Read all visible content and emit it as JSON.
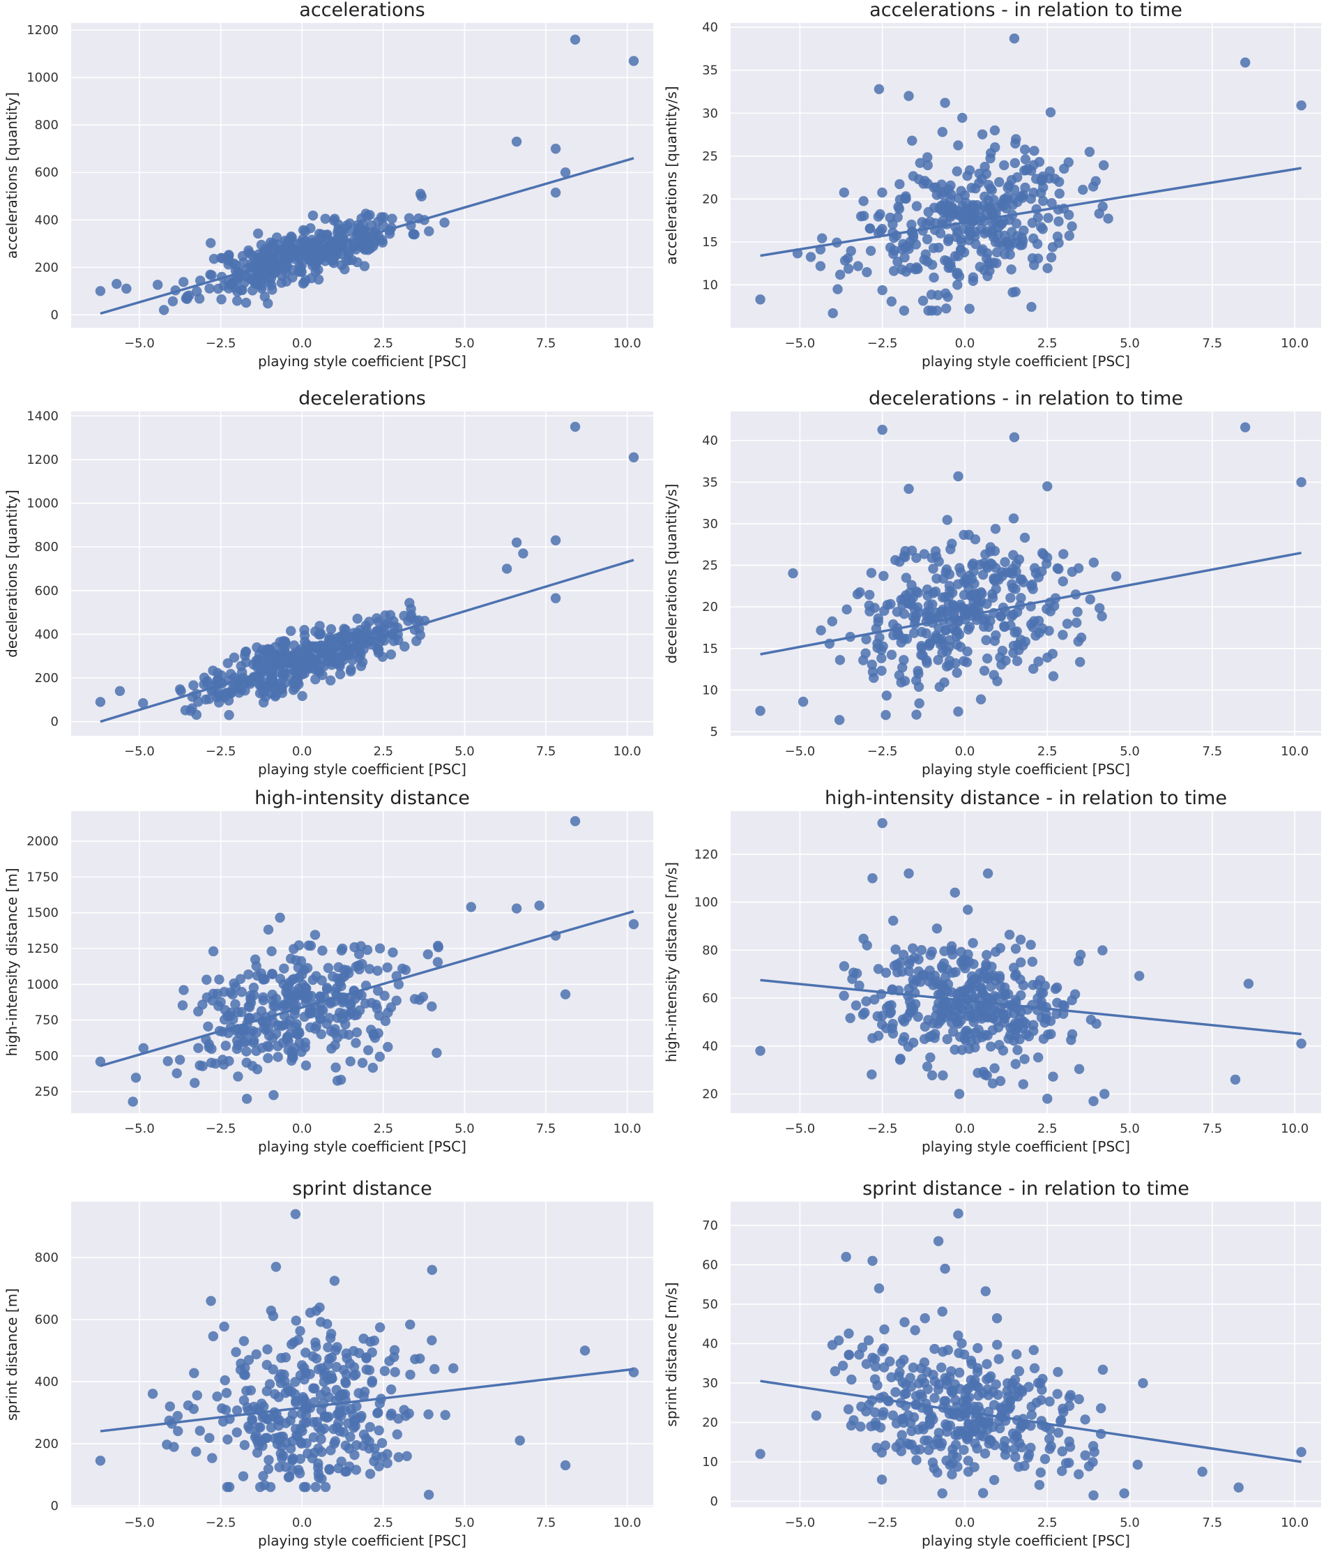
{
  "colors": {
    "background": "#eaeaf2",
    "grid": "#ffffff",
    "marker": "#4c72b0",
    "text": "#222222"
  },
  "chart_data": [
    {
      "type": "scatter",
      "title": "accelerations",
      "xlabel": "playing style coefficient [PSC]",
      "ylabel": "accelerations [quantity]",
      "xlim": [
        -7.1,
        10.8
      ],
      "ylim": [
        -55,
        1230
      ],
      "xticks": [
        -5,
        -2.5,
        0,
        2.5,
        5,
        7.5,
        10
      ],
      "xtick_labels": [
        "−5.0",
        "−2.5",
        "0.0",
        "2.5",
        "5.0",
        "7.5",
        "10.0"
      ],
      "yticks": [
        0,
        200,
        400,
        600,
        800,
        1000,
        1200
      ],
      "ytick_labels": [
        "0",
        "200",
        "400",
        "600",
        "800",
        "1000",
        "1200"
      ],
      "regression": {
        "x": [
          -6.2,
          10.2
        ],
        "y": [
          5,
          660
        ]
      },
      "outliers": [
        [
          8.4,
          1160
        ],
        [
          10.2,
          1070
        ],
        [
          6.6,
          730
        ],
        [
          7.8,
          700
        ],
        [
          8.1,
          600
        ],
        [
          7.8,
          515
        ],
        [
          -6.2,
          100
        ],
        [
          -5.4,
          110
        ],
        [
          -5.7,
          130
        ]
      ],
      "generator": {
        "n": 380,
        "xmin": -5.4,
        "xmax": 5.4,
        "xsd": 2.1,
        "slope": 40,
        "intercept": 255,
        "spread": 55,
        "ymin": 20,
        "seed": 11
      }
    },
    {
      "type": "scatter",
      "title": "accelerations - in relation to time",
      "xlabel": "playing style coefficient [PSC]",
      "ylabel": "accelerations [quantity/s]",
      "xlim": [
        -7.1,
        10.8
      ],
      "ylim": [
        5,
        40.5
      ],
      "xticks": [
        -5,
        -2.5,
        0,
        2.5,
        5,
        7.5,
        10
      ],
      "xtick_labels": [
        "−5.0",
        "−2.5",
        "0.0",
        "2.5",
        "5.0",
        "7.5",
        "10.0"
      ],
      "yticks": [
        10,
        15,
        20,
        25,
        30,
        35,
        40
      ],
      "ytick_labels": [
        "10",
        "15",
        "20",
        "25",
        "30",
        "35",
        "40"
      ],
      "regression": {
        "x": [
          -6.2,
          10.2
        ],
        "y": [
          13.4,
          23.6
        ]
      },
      "outliers": [
        [
          1.5,
          38.7
        ],
        [
          8.5,
          35.9
        ],
        [
          -2.6,
          32.8
        ],
        [
          -1.7,
          32.0
        ],
        [
          -0.6,
          31.2
        ],
        [
          10.2,
          30.9
        ],
        [
          2.6,
          30.1
        ],
        [
          -1.6,
          26.8
        ],
        [
          -6.2,
          8.3
        ],
        [
          -4.0,
          6.7
        ]
      ],
      "generator": {
        "n": 360,
        "xmin": -5.6,
        "xmax": 5.4,
        "xsd": 2.3,
        "slope": 0.62,
        "intercept": 17.2,
        "spread": 4.0,
        "ymin": 7,
        "seed": 23
      }
    },
    {
      "type": "scatter",
      "title": "decelerations",
      "xlabel": "playing style coefficient [PSC]",
      "ylabel": "decelerations [quantity]",
      "xlim": [
        -7.1,
        10.8
      ],
      "ylim": [
        -65,
        1420
      ],
      "xticks": [
        -5,
        -2.5,
        0,
        2.5,
        5,
        7.5,
        10
      ],
      "xtick_labels": [
        "−5.0",
        "−2.5",
        "0.0",
        "2.5",
        "5.0",
        "7.5",
        "10.0"
      ],
      "yticks": [
        0,
        200,
        400,
        600,
        800,
        1000,
        1200,
        1400
      ],
      "ytick_labels": [
        "0",
        "200",
        "400",
        "600",
        "800",
        "1000",
        "1200",
        "1400"
      ],
      "regression": {
        "x": [
          -6.2,
          10.2
        ],
        "y": [
          0,
          740
        ]
      },
      "outliers": [
        [
          8.4,
          1350
        ],
        [
          10.2,
          1210
        ],
        [
          6.6,
          820
        ],
        [
          7.8,
          830
        ],
        [
          6.8,
          770
        ],
        [
          6.3,
          700
        ],
        [
          7.8,
          565
        ],
        [
          -6.2,
          90
        ],
        [
          -5.6,
          140
        ]
      ],
      "generator": {
        "n": 380,
        "xmin": -5.4,
        "xmax": 5.4,
        "xsd": 2.1,
        "slope": 46,
        "intercept": 285,
        "spread": 60,
        "ymin": 30,
        "seed": 37
      }
    },
    {
      "type": "scatter",
      "title": "decelerations - in relation to time",
      "xlabel": "playing style coefficient [PSC]",
      "ylabel": "decelerations [quantity/s]",
      "xlim": [
        -7.1,
        10.8
      ],
      "ylim": [
        4.5,
        43.5
      ],
      "xticks": [
        -5,
        -2.5,
        0,
        2.5,
        5,
        7.5,
        10
      ],
      "xtick_labels": [
        "−5.0",
        "−2.5",
        "0.0",
        "2.5",
        "5.0",
        "7.5",
        "10.0"
      ],
      "yticks": [
        5,
        10,
        15,
        20,
        25,
        30,
        35,
        40
      ],
      "ytick_labels": [
        "5",
        "10",
        "15",
        "20",
        "25",
        "30",
        "35",
        "40"
      ],
      "regression": {
        "x": [
          -6.2,
          10.2
        ],
        "y": [
          14.3,
          26.5
        ]
      },
      "outliers": [
        [
          -2.5,
          41.3
        ],
        [
          8.5,
          41.6
        ],
        [
          1.5,
          40.4
        ],
        [
          10.2,
          35.0
        ],
        [
          -1.7,
          34.2
        ],
        [
          2.5,
          34.5
        ],
        [
          -0.2,
          35.7
        ],
        [
          -6.2,
          7.5
        ],
        [
          -3.8,
          6.4
        ],
        [
          -4.9,
          8.6
        ]
      ],
      "generator": {
        "n": 360,
        "xmin": -5.6,
        "xmax": 5.4,
        "xsd": 2.3,
        "slope": 0.72,
        "intercept": 19.0,
        "spread": 4.5,
        "ymin": 7,
        "seed": 51
      }
    },
    {
      "type": "scatter",
      "title": "high-intensity distance",
      "xlabel": "playing style coefficient [PSC]",
      "ylabel": "high-intensity distance [m]",
      "xlim": [
        -7.1,
        10.8
      ],
      "ylim": [
        100,
        2210
      ],
      "xticks": [
        -5,
        -2.5,
        0,
        2.5,
        5,
        7.5,
        10
      ],
      "xtick_labels": [
        "−5.0",
        "−2.5",
        "0.0",
        "2.5",
        "5.0",
        "7.5",
        "10.0"
      ],
      "yticks": [
        250,
        500,
        750,
        1000,
        1250,
        1500,
        1750,
        2000
      ],
      "ytick_labels": [
        "250",
        "500",
        "750",
        "1000",
        "1250",
        "1500",
        "1750",
        "2000"
      ],
      "regression": {
        "x": [
          -6.2,
          10.2
        ],
        "y": [
          430,
          1510
        ]
      },
      "outliers": [
        [
          8.4,
          2140
        ],
        [
          10.2,
          1420
        ],
        [
          7.3,
          1550
        ],
        [
          6.6,
          1530
        ],
        [
          5.2,
          1540
        ],
        [
          7.8,
          1340
        ],
        [
          8.1,
          930
        ],
        [
          -6.2,
          460
        ],
        [
          -5.2,
          180
        ]
      ],
      "generator": {
        "n": 340,
        "xmin": -5.6,
        "xmax": 5.4,
        "xsd": 2.3,
        "slope": 56,
        "intercept": 830,
        "spread": 220,
        "ymin": 200,
        "seed": 73
      }
    },
    {
      "type": "scatter",
      "title": "high-intensity distance - in relation to time",
      "xlabel": "playing style coefficient [PSC]",
      "ylabel": "high-intensity distance [m/s]",
      "xlim": [
        -7.1,
        10.8
      ],
      "ylim": [
        12,
        138
      ],
      "xticks": [
        -5,
        -2.5,
        0,
        2.5,
        5,
        7.5,
        10
      ],
      "xtick_labels": [
        "−5.0",
        "−2.5",
        "0.0",
        "2.5",
        "5.0",
        "7.5",
        "10.0"
      ],
      "yticks": [
        20,
        40,
        60,
        80,
        100,
        120
      ],
      "ytick_labels": [
        "20",
        "40",
        "60",
        "80",
        "100",
        "120"
      ],
      "regression": {
        "x": [
          -6.2,
          10.2
        ],
        "y": [
          67.5,
          45.0
        ]
      },
      "outliers": [
        [
          -2.5,
          133
        ],
        [
          -1.7,
          112
        ],
        [
          0.7,
          112
        ],
        [
          -2.8,
          110
        ],
        [
          -0.3,
          104
        ],
        [
          -6.2,
          38
        ],
        [
          3.9,
          17
        ],
        [
          2.5,
          18
        ],
        [
          10.2,
          41
        ],
        [
          8.6,
          66
        ],
        [
          8.2,
          26
        ]
      ],
      "generator": {
        "n": 360,
        "xmin": -5.6,
        "xmax": 5.4,
        "xsd": 2.3,
        "slope": -1.4,
        "intercept": 58,
        "spread": 14,
        "ymin": 20,
        "seed": 97
      }
    },
    {
      "type": "scatter",
      "title": "sprint distance",
      "xlabel": "playing style coefficient [PSC]",
      "ylabel": "sprint distance [m]",
      "xlim": [
        -7.1,
        10.8
      ],
      "ylim": [
        -5,
        980
      ],
      "xticks": [
        -5,
        -2.5,
        0,
        2.5,
        5,
        7.5,
        10
      ],
      "xtick_labels": [
        "−5.0",
        "−2.5",
        "0.0",
        "2.5",
        "5.0",
        "7.5",
        "10.0"
      ],
      "yticks": [
        0,
        200,
        400,
        600,
        800
      ],
      "ytick_labels": [
        "0",
        "200",
        "400",
        "600",
        "800"
      ],
      "regression": {
        "x": [
          -6.2,
          10.2
        ],
        "y": [
          240,
          440
        ]
      },
      "outliers": [
        [
          -0.2,
          940
        ],
        [
          -0.8,
          770
        ],
        [
          4.0,
          760
        ],
        [
          1.0,
          725
        ],
        [
          -2.8,
          660
        ],
        [
          -6.2,
          145
        ],
        [
          3.9,
          35
        ],
        [
          10.2,
          430
        ],
        [
          8.1,
          130
        ],
        [
          8.7,
          500
        ],
        [
          6.7,
          210
        ]
      ],
      "generator": {
        "n": 340,
        "xmin": -5.6,
        "xmax": 5.4,
        "xsd": 2.3,
        "slope": 12,
        "intercept": 315,
        "spread": 130,
        "ymin": 60,
        "seed": 131
      }
    },
    {
      "type": "scatter",
      "title": "sprint distance - in relation to time",
      "xlabel": "playing style coefficient [PSC]",
      "ylabel": "sprint distance [m/s]",
      "xlim": [
        -7.1,
        10.8
      ],
      "ylim": [
        -1.5,
        76
      ],
      "xticks": [
        -5,
        -2.5,
        0,
        2.5,
        5,
        7.5,
        10
      ],
      "xtick_labels": [
        "−5.0",
        "−2.5",
        "0.0",
        "2.5",
        "5.0",
        "7.5",
        "10.0"
      ],
      "yticks": [
        0,
        10,
        20,
        30,
        40,
        50,
        60,
        70
      ],
      "ytick_labels": [
        "0",
        "10",
        "20",
        "30",
        "40",
        "50",
        "60",
        "70"
      ],
      "regression": {
        "x": [
          -6.2,
          10.2
        ],
        "y": [
          30.5,
          10.0
        ]
      },
      "outliers": [
        [
          -0.2,
          73
        ],
        [
          -0.8,
          66
        ],
        [
          -0.6,
          59
        ],
        [
          -3.6,
          62
        ],
        [
          -2.8,
          61
        ],
        [
          -2.6,
          54
        ],
        [
          -6.2,
          12
        ],
        [
          3.9,
          1.5
        ],
        [
          8.3,
          3.5
        ],
        [
          10.2,
          12.5
        ],
        [
          7.2,
          7.5
        ]
      ],
      "generator": {
        "n": 360,
        "xmin": -5.6,
        "xmax": 5.4,
        "xsd": 2.3,
        "slope": -1.25,
        "intercept": 23,
        "spread": 8.5,
        "ymin": 2,
        "seed": 157
      }
    }
  ]
}
